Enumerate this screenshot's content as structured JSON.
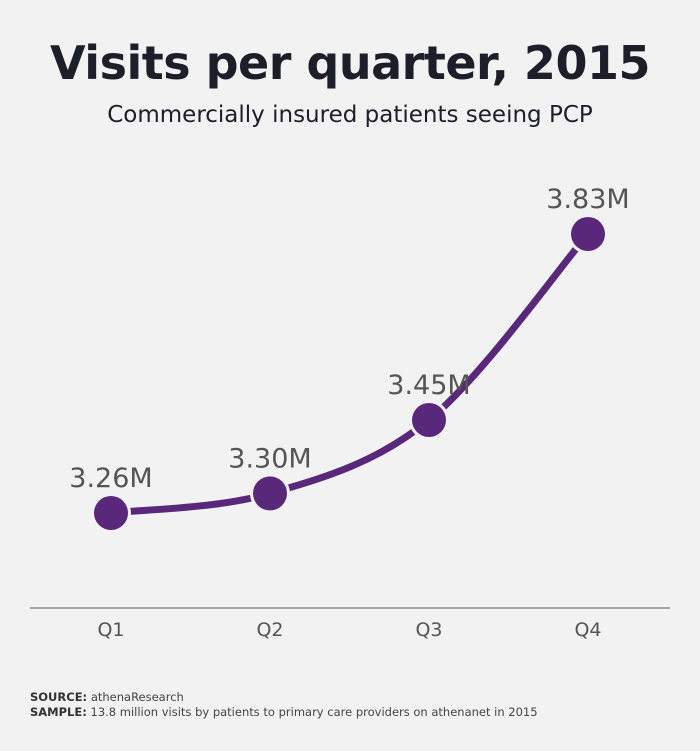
{
  "header": {
    "title": "Visits per quarter, 2015",
    "subtitle": "Commercially insured patients seeing PCP"
  },
  "footer": {
    "source_label": "SOURCE:",
    "source_text": "athenaResearch",
    "sample_label": "SAMPLE:",
    "sample_text": "13.8 million visits by patients to primary care providers on athenanet in 2015"
  },
  "colors": {
    "line": "#59287a",
    "marker": "#59287a",
    "axis": "#555555",
    "label": "#555555",
    "background": "#f2f2f2"
  },
  "chart_data": {
    "type": "line",
    "title": "Visits per quarter, 2015",
    "subtitle": "Commercially insured patients seeing PCP",
    "categories": [
      "Q1",
      "Q2",
      "Q3",
      "Q4"
    ],
    "series": [
      {
        "values": [
          3.26,
          3.3,
          3.45,
          3.83
        ],
        "labels": [
          "3.26M",
          "3.30M",
          "3.45M",
          "3.83M"
        ]
      }
    ],
    "unit": "M",
    "xlabel": "",
    "ylabel": "",
    "grid": false,
    "legend": "none"
  }
}
